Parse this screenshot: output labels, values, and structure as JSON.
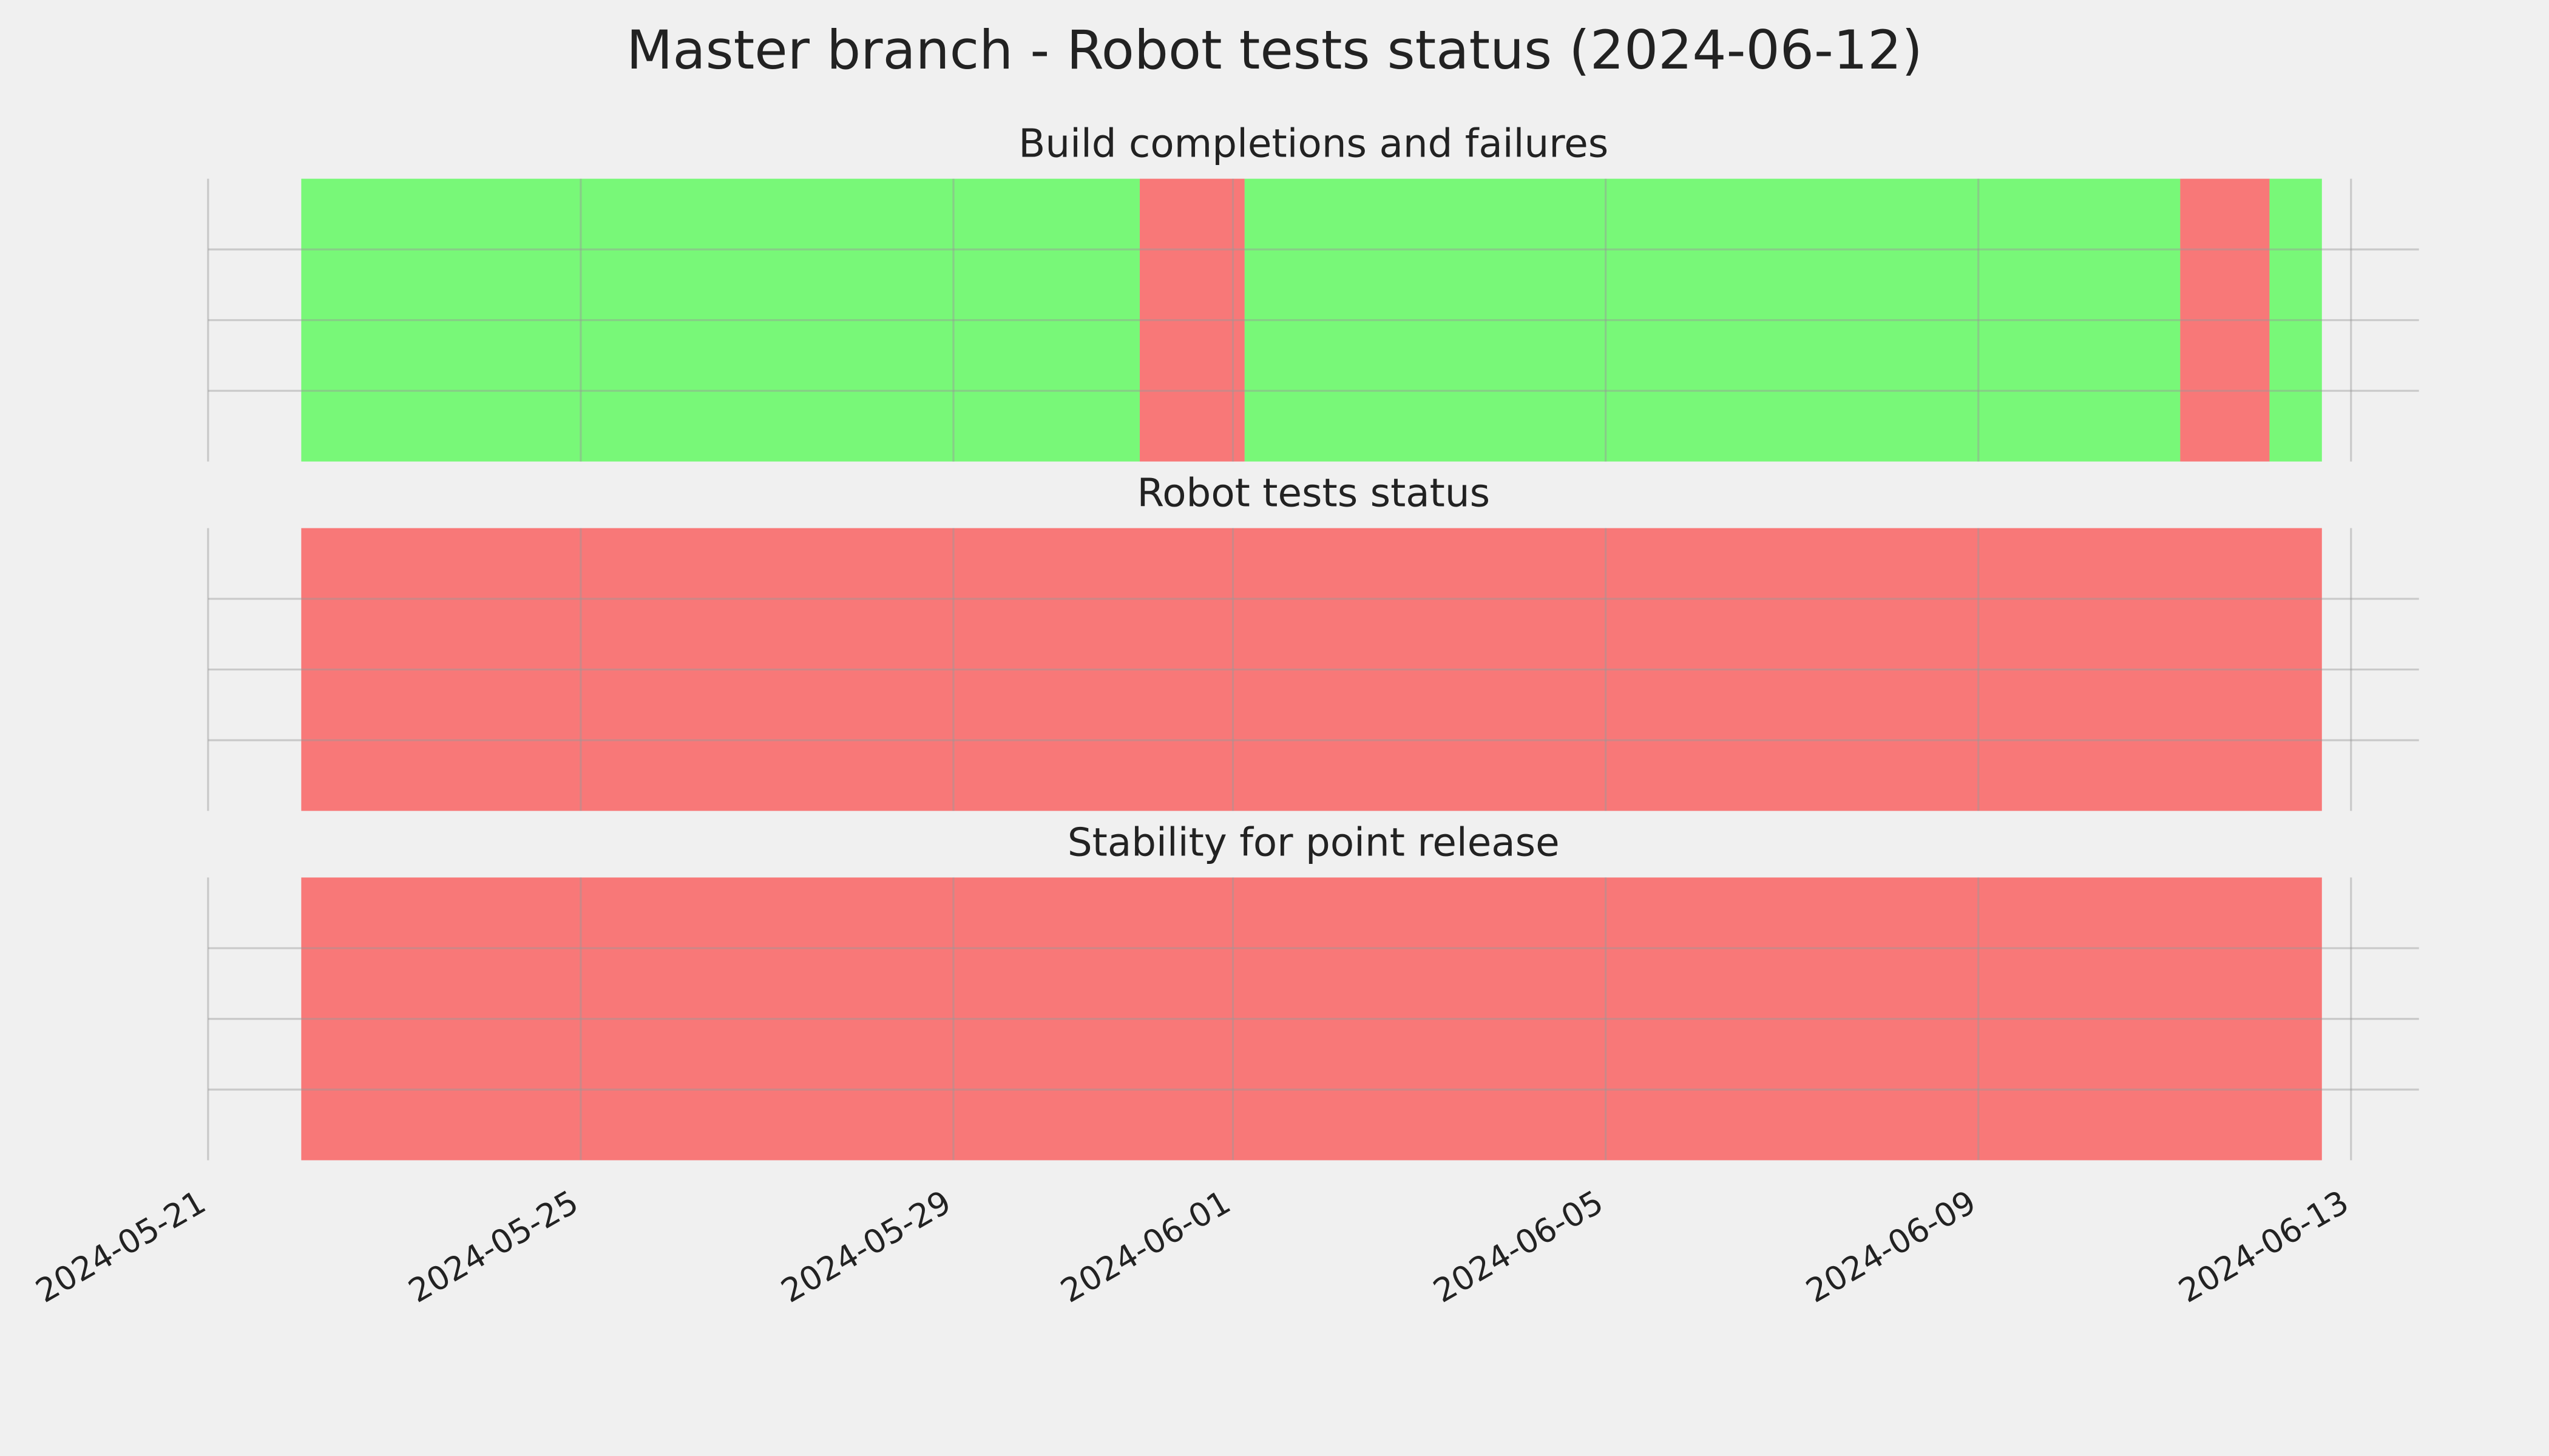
{
  "title": "Master branch - Robot tests status (2024-06-12)",
  "xaxis": {
    "xlim": [
      "2024-05-21",
      "2024-06-13T17:30"
    ],
    "xticks": [
      "2024-05-21",
      "2024-05-25",
      "2024-05-29",
      "2024-06-01",
      "2024-06-05",
      "2024-06-09",
      "2024-06-13"
    ]
  },
  "chart_data": [
    {
      "type": "timeline",
      "title": "Build completions and failures",
      "ylim": [
        0,
        1
      ],
      "yticks": [
        0.25,
        0.5,
        0.75
      ],
      "grid": true,
      "segments": [
        {
          "start": "2024-05-22",
          "end": "2024-05-31",
          "color": "#00ff00"
        },
        {
          "start": "2024-05-31",
          "end": "2024-06-01T03:00",
          "color": "#ff0000"
        },
        {
          "start": "2024-06-01T03:00",
          "end": "2024-06-11T04:00",
          "color": "#00ff00"
        },
        {
          "start": "2024-06-11T04:00",
          "end": "2024-06-12T03:00",
          "color": "#ff0000"
        },
        {
          "start": "2024-06-12T03:00",
          "end": "2024-06-12T16:30",
          "color": "#00ff00"
        }
      ]
    },
    {
      "type": "timeline",
      "title": "Robot tests status",
      "ylim": [
        0,
        1
      ],
      "yticks": [
        0.25,
        0.5,
        0.75
      ],
      "grid": true,
      "segments": [
        {
          "start": "2024-05-22",
          "end": "2024-06-12T16:30",
          "color": "#ff0000"
        }
      ]
    },
    {
      "type": "timeline",
      "title": "Stability for point release",
      "ylim": [
        0,
        1
      ],
      "yticks": [
        0.25,
        0.5,
        0.75
      ],
      "grid": true,
      "segments": [
        {
          "start": "2024-05-22",
          "end": "2024-06-12T16:30",
          "color": "#ff0000"
        }
      ]
    }
  ]
}
